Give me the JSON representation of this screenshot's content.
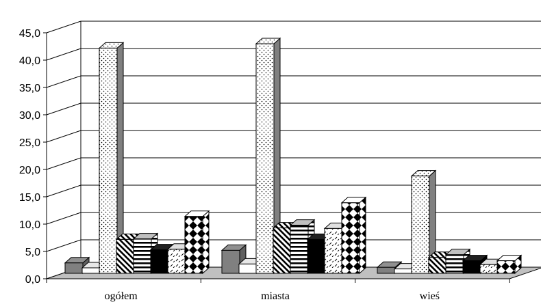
{
  "chart_data": {
    "type": "bar",
    "title": "",
    "xlabel": "",
    "ylabel": "",
    "ylim": [
      0,
      45
    ],
    "yticks": [
      "0,0",
      "5,0",
      "10,0",
      "15,0",
      "20,0",
      "25,0",
      "30,0",
      "35,0",
      "40,0",
      "45,0"
    ],
    "categories": [
      "ogółem",
      "miasta",
      "wieś"
    ],
    "grid": true,
    "legend": "none",
    "series": [
      {
        "values": [
          1.9,
          4.2,
          1.1
        ],
        "pattern": "solid-gray",
        "color": "#808080"
      },
      {
        "values": [
          1.0,
          1.7,
          0.8
        ],
        "pattern": "white",
        "color": "#ffffff"
      },
      {
        "values": [
          41.2,
          42.0,
          17.8
        ],
        "pattern": "dots",
        "color": "#ffffff"
      },
      {
        "values": [
          6.2,
          8.3,
          2.9
        ],
        "pattern": "diagonal-stripes",
        "color": "#000000"
      },
      {
        "values": [
          6.3,
          8.8,
          3.4
        ],
        "pattern": "horizontal-stripes",
        "color": "#000000"
      },
      {
        "values": [
          4.3,
          6.2,
          2.3
        ],
        "pattern": "solid-black",
        "color": "#000000"
      },
      {
        "values": [
          4.4,
          8.2,
          1.6
        ],
        "pattern": "dashes",
        "color": "#ffffff"
      },
      {
        "values": [
          10.4,
          12.9,
          2.3
        ],
        "pattern": "diamonds",
        "color": "#000000"
      }
    ]
  }
}
